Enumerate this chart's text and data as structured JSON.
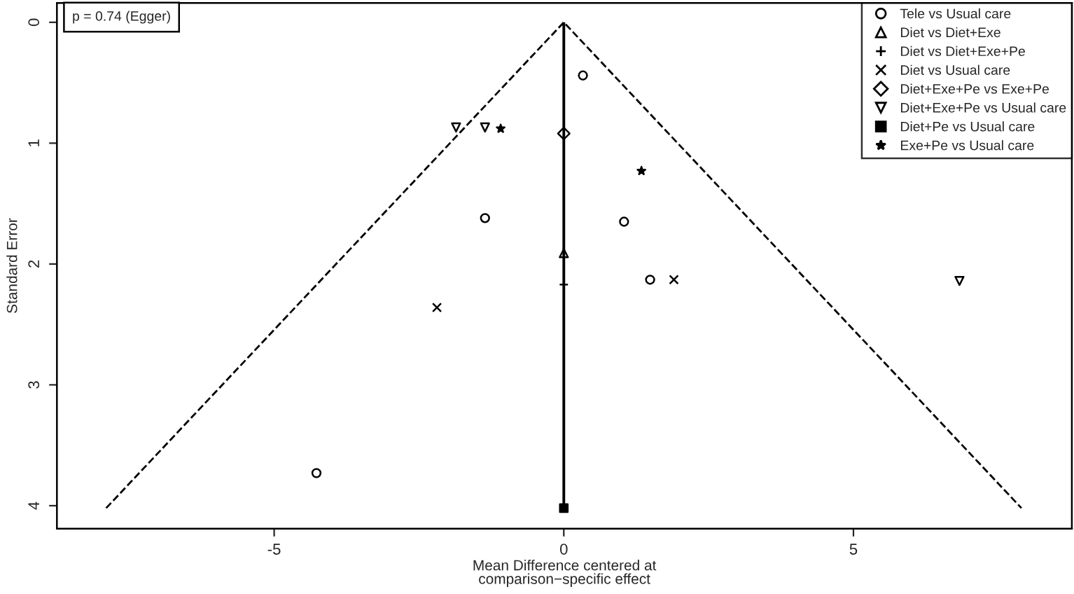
{
  "chart_data": {
    "type": "scatter",
    "xlabel": "Mean Difference centered at\ncomparison−specific effect",
    "ylabel": "Standard Error",
    "xlim": [
      -8.75,
      8.77
    ],
    "ylim": [
      4.19,
      -0.16
    ],
    "xticks": [
      -5,
      0,
      5
    ],
    "yticks": [
      0,
      1,
      2,
      3,
      4
    ],
    "grid": false,
    "legend": "top right",
    "annotations": [
      "p = 0.74 (Egger)"
    ],
    "ref_lines": [
      {
        "axis": "x",
        "value": 0,
        "color": "#000000",
        "line_style": "solid"
      }
    ],
    "series": [
      {
        "type": "line",
        "line_style": "dashed",
        "color": "#000000",
        "x": [
          -7.9,
          0,
          7.9
        ],
        "values": [
          4.02,
          0,
          4.02
        ]
      },
      {
        "name": "Tele vs Usual care",
        "marker": "circle",
        "color": "#000000",
        "x": [
          0.33,
          -1.36,
          1.04,
          1.49,
          -4.27
        ],
        "values": [
          0.44,
          1.62,
          1.65,
          2.13,
          3.73
        ]
      },
      {
        "name": "Diet vs Diet+Exe",
        "marker": "triangle",
        "color": "#000000",
        "x": [
          0
        ],
        "values": [
          1.91
        ]
      },
      {
        "name": "Diet vs Diet+Exe+Pe",
        "marker": "plus",
        "color": "#000000",
        "x": [
          0
        ],
        "values": [
          2.17
        ]
      },
      {
        "name": "Diet vs Usual care",
        "marker": "cross",
        "color": "#000000",
        "x": [
          -2.19,
          1.9
        ],
        "values": [
          2.36,
          2.13
        ]
      },
      {
        "name": "Diet+Exe+Pe vs Exe+Pe",
        "marker": "diamond",
        "color": "#000000",
        "x": [
          0
        ],
        "values": [
          0.92
        ]
      },
      {
        "name": "Diet+Exe+Pe vs Usual care",
        "marker": "triangle_down",
        "color": "#000000",
        "x": [
          -1.86,
          -1.36,
          6.83
        ],
        "values": [
          0.87,
          0.87,
          2.14
        ]
      },
      {
        "name": "Diet+Pe vs Usual care",
        "marker": "square",
        "color": "#000000",
        "x": [
          0
        ],
        "values": [
          4.02
        ]
      },
      {
        "name": "Exe+Pe vs Usual care",
        "marker": "star",
        "color": "#000000",
        "x": [
          -1.09,
          1.34
        ],
        "values": [
          0.88,
          1.23
        ]
      }
    ]
  }
}
